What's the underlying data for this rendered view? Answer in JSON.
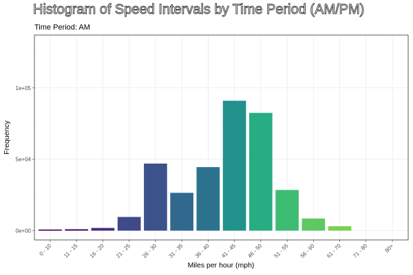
{
  "chart_data": {
    "type": "bar",
    "title": "Histogram of Speed Intervals by Time Period (AM/PM)",
    "subtitle": "Time Period: AM",
    "xlabel": "Miles per hour (mph)",
    "ylabel": "Frequency",
    "categories": [
      "0 - 10",
      "11 - 15",
      "16 - 20",
      "21 - 25",
      "26 - 30",
      "31 - 35",
      "36 - 40",
      "41 - 45",
      "46 - 50",
      "51 - 55",
      "56 - 60",
      "61 - 70",
      "71 - 80",
      "80+"
    ],
    "values": [
      800,
      1000,
      1900,
      9600,
      47000,
      26500,
      44500,
      91000,
      82500,
      28500,
      8500,
      3100,
      0,
      0
    ],
    "colors": [
      "#440154",
      "#471063",
      "#472d7b",
      "#3e4a89",
      "#3b528b",
      "#31688e",
      "#2c728e",
      "#21918c",
      "#27ad81",
      "#3fbc73",
      "#5ec962",
      "#7ad151",
      "#addc30",
      "#fde725"
    ],
    "ylim": [
      -6500,
      137000
    ],
    "yticks": [
      0,
      50000,
      100000
    ],
    "ytick_labels": [
      "0e+00",
      "5e+04",
      "1e+05"
    ],
    "grid": true,
    "legend": "none"
  }
}
